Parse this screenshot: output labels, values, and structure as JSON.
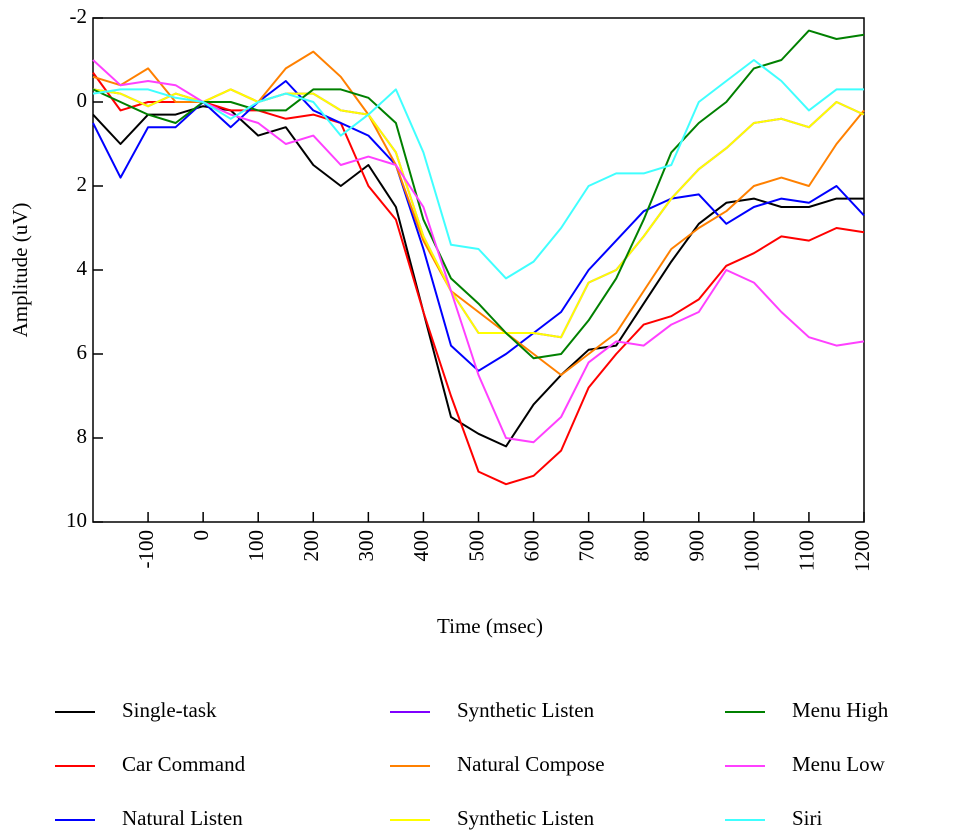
{
  "chart_data": {
    "type": "line",
    "x_label": "Time (msec)",
    "y_label": "Amplitude (uV)",
    "xlim": [
      -200,
      1200
    ],
    "xticks": [
      -100,
      0,
      100,
      200,
      300,
      400,
      500,
      600,
      700,
      800,
      900,
      1000,
      1100,
      1200
    ],
    "ylim": [
      -2,
      10
    ],
    "yticks": [
      -2,
      0,
      2,
      4,
      6,
      8,
      10
    ],
    "y_inverted": true,
    "grid": false,
    "x": [
      -200,
      -150,
      -100,
      -50,
      0,
      50,
      100,
      150,
      200,
      250,
      300,
      350,
      400,
      450,
      500,
      550,
      600,
      650,
      700,
      750,
      800,
      850,
      900,
      950,
      1000,
      1050,
      1100,
      1150,
      1200
    ],
    "series": [
      {
        "name": "Single-task",
        "color": "#000000",
        "values": [
          0.3,
          1.0,
          0.3,
          0.3,
          0.1,
          0.2,
          0.8,
          0.6,
          1.5,
          2.0,
          1.5,
          2.5,
          5.0,
          7.5,
          7.9,
          8.2,
          7.2,
          6.5,
          5.9,
          5.8,
          4.8,
          3.8,
          2.9,
          2.4,
          2.3,
          2.5,
          2.5,
          2.3,
          2.3
        ]
      },
      {
        "name": "Car Command",
        "color": "#ff0000",
        "values": [
          -0.7,
          0.2,
          0.0,
          0.0,
          0.0,
          0.2,
          0.2,
          0.4,
          0.3,
          0.5,
          2.0,
          2.8,
          5.0,
          7.0,
          8.8,
          9.1,
          8.9,
          8.3,
          6.8,
          6.0,
          5.3,
          5.1,
          4.7,
          3.9,
          3.6,
          3.2,
          3.3,
          3.0,
          3.1
        ]
      },
      {
        "name": "Natural Listen",
        "color": "#0000ff",
        "values": [
          0.5,
          1.8,
          0.6,
          0.6,
          0.0,
          0.6,
          0.0,
          -0.5,
          0.2,
          0.5,
          0.8,
          1.5,
          3.5,
          5.8,
          6.4,
          6.0,
          5.5,
          5.0,
          4.0,
          3.3,
          2.6,
          2.3,
          2.2,
          2.9,
          2.5,
          2.3,
          2.4,
          2.0,
          2.7
        ]
      },
      {
        "name": "Synthetic Listen",
        "color": "#8000ff",
        "values": [
          -0.3,
          -0.2,
          0.1,
          -0.2,
          0.0,
          -0.3,
          0.0,
          -0.2,
          -0.2,
          0.2,
          0.3,
          1.2,
          3.2,
          4.5,
          5.5,
          5.5,
          5.5,
          5.6,
          4.3,
          4.0,
          3.2,
          2.3,
          1.6,
          1.1,
          0.5,
          0.4,
          0.6,
          0.0,
          0.3
        ]
      },
      {
        "name": "Natural Compose",
        "color": "#ff8000",
        "values": [
          -0.6,
          -0.4,
          -0.8,
          0.0,
          0.0,
          -0.3,
          0.0,
          -0.8,
          -1.2,
          -0.6,
          0.3,
          1.5,
          3.3,
          4.5,
          5.0,
          5.5,
          6.0,
          6.5,
          6.0,
          5.5,
          4.5,
          3.5,
          3.0,
          2.6,
          2.0,
          1.8,
          2.0,
          1.0,
          0.2
        ]
      },
      {
        "name": "Synthetic Listen",
        "color": "#ffff00",
        "values": [
          -0.3,
          -0.2,
          0.1,
          -0.2,
          0.0,
          -0.3,
          0.0,
          -0.2,
          -0.2,
          0.2,
          0.3,
          1.2,
          3.2,
          4.5,
          5.5,
          5.5,
          5.5,
          5.6,
          4.3,
          4.0,
          3.2,
          2.3,
          1.6,
          1.1,
          0.5,
          0.4,
          0.6,
          0.0,
          0.3
        ]
      },
      {
        "name": "Menu High",
        "color": "#008000",
        "values": [
          -0.3,
          0.0,
          0.3,
          0.5,
          0.0,
          0.0,
          0.2,
          0.2,
          -0.3,
          -0.3,
          -0.1,
          0.5,
          2.8,
          4.2,
          4.8,
          5.5,
          6.1,
          6.0,
          5.2,
          4.2,
          2.8,
          1.2,
          0.5,
          0.0,
          -0.8,
          -1.0,
          -1.7,
          -1.5,
          -1.6
        ]
      },
      {
        "name": "Menu Low",
        "color": "#ff40ff",
        "values": [
          -1.0,
          -0.4,
          -0.5,
          -0.4,
          0.0,
          0.3,
          0.5,
          1.0,
          0.8,
          1.5,
          1.3,
          1.5,
          2.5,
          4.5,
          6.5,
          8.0,
          8.1,
          7.5,
          6.2,
          5.7,
          5.8,
          5.3,
          5.0,
          4.0,
          4.3,
          5.0,
          5.6,
          5.8,
          5.7
        ]
      },
      {
        "name": "Siri",
        "color": "#40ffff",
        "values": [
          -0.2,
          -0.3,
          -0.3,
          -0.1,
          0.0,
          0.4,
          0.0,
          -0.2,
          0.0,
          0.8,
          0.3,
          -0.3,
          1.2,
          3.4,
          3.5,
          4.2,
          3.8,
          3.0,
          2.0,
          1.7,
          1.7,
          1.5,
          0.0,
          -0.5,
          -1.0,
          -0.5,
          0.2,
          -0.3,
          -0.3
        ]
      }
    ]
  }
}
